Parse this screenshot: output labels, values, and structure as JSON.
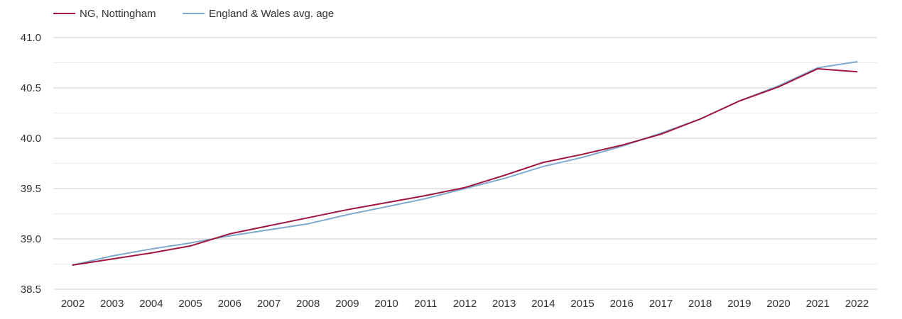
{
  "chart_data": {
    "type": "line",
    "title": "",
    "xlabel": "",
    "ylabel": "",
    "x": [
      "2002",
      "2003",
      "2004",
      "2005",
      "2006",
      "2007",
      "2008",
      "2009",
      "2010",
      "2011",
      "2012",
      "2013",
      "2014",
      "2015",
      "2016",
      "2017",
      "2018",
      "2019",
      "2020",
      "2021",
      "2022"
    ],
    "ylim": [
      38.5,
      41.0
    ],
    "yticks": [
      "41.0",
      "40.5",
      "40.0",
      "39.5",
      "39.0",
      "38.5"
    ],
    "grid": true,
    "legend_position": "top-left",
    "series": [
      {
        "name": "NG, Nottingham",
        "color": "#a0153e",
        "values": [
          38.74,
          38.8,
          38.86,
          38.93,
          39.05,
          39.13,
          39.21,
          39.29,
          39.36,
          39.43,
          39.51,
          39.63,
          39.76,
          39.84,
          39.93,
          40.04,
          40.19,
          40.37,
          40.51,
          40.69,
          40.66
        ]
      },
      {
        "name": "England & Wales avg. age",
        "color": "#7eaacf",
        "values": [
          38.74,
          38.83,
          38.9,
          38.96,
          39.03,
          39.09,
          39.15,
          39.24,
          39.32,
          39.4,
          39.5,
          39.6,
          39.72,
          39.81,
          39.92,
          40.05,
          40.19,
          40.37,
          40.52,
          40.7,
          40.76
        ]
      }
    ]
  }
}
